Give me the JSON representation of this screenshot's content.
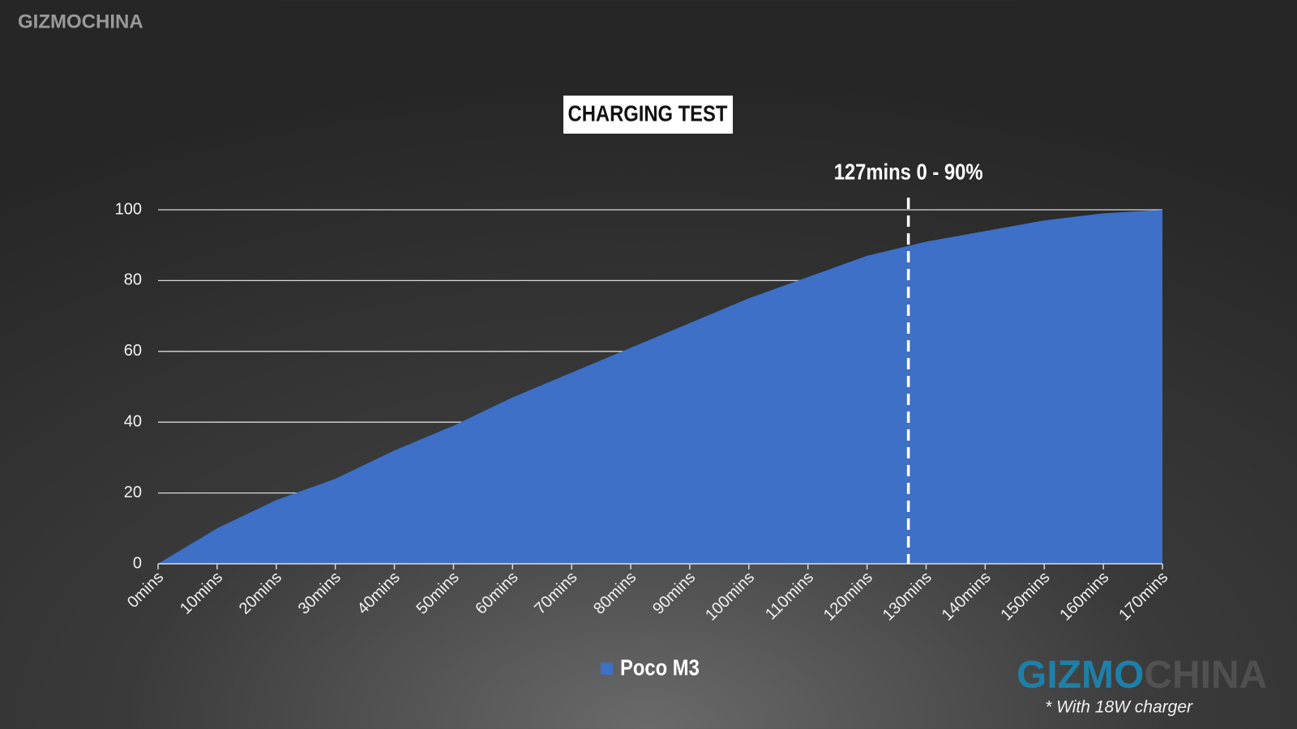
{
  "chart_data": {
    "type": "area",
    "title": "CHARGING TEST",
    "x": [
      0,
      10,
      20,
      30,
      40,
      50,
      60,
      70,
      80,
      90,
      100,
      110,
      120,
      130,
      140,
      150,
      160,
      170
    ],
    "xlim": [
      0,
      170
    ],
    "xticks": [
      {
        "value": 0,
        "label": "0mins"
      },
      {
        "value": 10,
        "label": "10mins"
      },
      {
        "value": 20,
        "label": "20mins"
      },
      {
        "value": 30,
        "label": "30mins"
      },
      {
        "value": 40,
        "label": "40mins"
      },
      {
        "value": 50,
        "label": "50mins"
      },
      {
        "value": 60,
        "label": "60mins"
      },
      {
        "value": 70,
        "label": "70mins"
      },
      {
        "value": 80,
        "label": "80mins"
      },
      {
        "value": 90,
        "label": "90mins"
      },
      {
        "value": 100,
        "label": "100mins"
      },
      {
        "value": 110,
        "label": "110mins"
      },
      {
        "value": 120,
        "label": "120mins"
      },
      {
        "value": 130,
        "label": "130mins"
      },
      {
        "value": 140,
        "label": "140mins"
      },
      {
        "value": 150,
        "label": "150mins"
      },
      {
        "value": 160,
        "label": "160mins"
      },
      {
        "value": 170,
        "label": "170mins"
      }
    ],
    "ylim": [
      0,
      100
    ],
    "yticks": [
      0,
      20,
      40,
      60,
      80,
      100
    ],
    "grid": true,
    "series": [
      {
        "name": "Poco M3",
        "color": "#3d70c6",
        "values": [
          0,
          10,
          18,
          24,
          32,
          39,
          47,
          54,
          61,
          68,
          75,
          81,
          87,
          91,
          94,
          97,
          99,
          100
        ]
      }
    ],
    "annotation": {
      "text": "127mins 0 - 90%",
      "x": 127
    },
    "footnote": "* With 18W charger"
  },
  "watermark": {
    "top_left": "GIZMOCHINA",
    "bottom_right": [
      "GIZMO",
      "CHINA"
    ]
  }
}
